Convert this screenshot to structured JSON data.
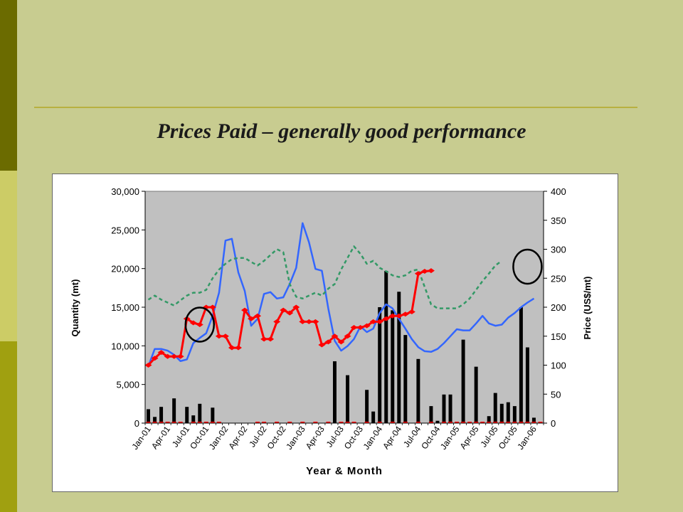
{
  "slide": {
    "title": "Prices Paid – generally good performance"
  },
  "chart_data": {
    "type": "bar+line",
    "xlabel": "Year & Month",
    "ylabel_left": "Quantity (mt)",
    "ylabel_right": "Price (US$/mt)",
    "ylim_left": [
      0,
      30000
    ],
    "ylim_right": [
      0,
      400
    ],
    "yticks_left": [
      "0",
      "5,000",
      "10,000",
      "15,000",
      "20,000",
      "25,000",
      "30,000"
    ],
    "yticks_right": [
      "0",
      "50",
      "100",
      "150",
      "200",
      "250",
      "300",
      "350",
      "400"
    ],
    "grid": false,
    "plot_background": "#c0c0c0",
    "tick_labels": [
      "Jan-01",
      "Apr-01",
      "Jul-01",
      "Oct-01",
      "Jan-02",
      "Apr-02",
      "Jul-02",
      "Oct-02",
      "Jan-03",
      "Apr-03",
      "Jul-03",
      "Oct-03",
      "Jan-04",
      "Apr-04",
      "Jul-04",
      "Oct-04",
      "Jan-05",
      "Apr-05",
      "Jul-05",
      "Oct-05",
      "Jan-06"
    ],
    "months_count": 62,
    "quantity_bars": [
      [
        0,
        1800
      ],
      [
        1,
        800
      ],
      [
        2,
        2100
      ],
      [
        4,
        3200
      ],
      [
        6,
        2100
      ],
      [
        7,
        1000
      ],
      [
        8,
        2500
      ],
      [
        10,
        2000
      ],
      [
        29,
        8000
      ],
      [
        31,
        6200
      ],
      [
        34,
        4300
      ],
      [
        35,
        1500
      ],
      [
        36,
        15000
      ],
      [
        37,
        19700
      ],
      [
        38,
        14600
      ],
      [
        39,
        17000
      ],
      [
        40,
        11400
      ],
      [
        42,
        8300
      ],
      [
        44,
        2200
      ],
      [
        45,
        300
      ],
      [
        46,
        3700
      ],
      [
        47,
        3700
      ],
      [
        49,
        10800
      ],
      [
        51,
        7300
      ],
      [
        53,
        900
      ],
      [
        54,
        3900
      ],
      [
        55,
        2500
      ],
      [
        56,
        2700
      ],
      [
        57,
        2200
      ],
      [
        58,
        15000
      ],
      [
        59,
        9800
      ],
      [
        60,
        700
      ]
    ],
    "series": [
      {
        "type": "line",
        "color": "#3366ff",
        "points": [
          [
            0,
            98
          ],
          [
            1,
            128
          ],
          [
            2,
            128
          ],
          [
            3,
            125
          ],
          [
            4,
            118
          ],
          [
            5,
            107
          ],
          [
            6,
            110
          ],
          [
            7,
            138
          ],
          [
            8,
            147
          ],
          [
            9,
            155
          ],
          [
            10,
            185
          ],
          [
            11,
            225
          ],
          [
            12,
            315
          ],
          [
            13,
            318
          ],
          [
            14,
            260
          ],
          [
            15,
            228
          ],
          [
            16,
            168
          ],
          [
            17,
            180
          ],
          [
            18,
            223
          ],
          [
            19,
            226
          ],
          [
            20,
            215
          ],
          [
            21,
            217
          ],
          [
            22,
            240
          ],
          [
            23,
            268
          ],
          [
            24,
            345
          ],
          [
            25,
            312
          ],
          [
            26,
            266
          ],
          [
            27,
            263
          ],
          [
            28,
            198
          ],
          [
            29,
            142
          ],
          [
            30,
            125
          ],
          [
            31,
            133
          ],
          [
            32,
            145
          ],
          [
            33,
            167
          ],
          [
            34,
            157
          ],
          [
            35,
            163
          ],
          [
            36,
            190
          ],
          [
            37,
            205
          ],
          [
            38,
            198
          ],
          [
            39,
            180
          ],
          [
            40,
            163
          ],
          [
            41,
            145
          ],
          [
            42,
            131
          ],
          [
            43,
            124
          ],
          [
            44,
            123
          ],
          [
            45,
            128
          ],
          [
            46,
            138
          ],
          [
            47,
            150
          ],
          [
            48,
            162
          ],
          [
            49,
            160
          ],
          [
            50,
            160
          ],
          [
            51,
            172
          ],
          [
            52,
            185
          ],
          [
            53,
            172
          ],
          [
            54,
            168
          ],
          [
            55,
            170
          ],
          [
            56,
            182
          ],
          [
            57,
            190
          ],
          [
            58,
            200
          ],
          [
            59,
            208
          ],
          [
            60,
            215
          ]
        ]
      },
      {
        "type": "line",
        "dashed": true,
        "color": "#339966",
        "points": [
          [
            0,
            213
          ],
          [
            1,
            220
          ],
          [
            2,
            213
          ],
          [
            3,
            208
          ],
          [
            4,
            203
          ],
          [
            5,
            212
          ],
          [
            6,
            220
          ],
          [
            7,
            225
          ],
          [
            8,
            225
          ],
          [
            9,
            230
          ],
          [
            10,
            250
          ],
          [
            11,
            265
          ],
          [
            12,
            275
          ],
          [
            13,
            283
          ],
          [
            14,
            285
          ],
          [
            15,
            285
          ],
          [
            16,
            278
          ],
          [
            17,
            272
          ],
          [
            18,
            280
          ],
          [
            19,
            290
          ],
          [
            20,
            300
          ],
          [
            21,
            295
          ],
          [
            22,
            240
          ],
          [
            23,
            218
          ],
          [
            24,
            215
          ],
          [
            25,
            220
          ],
          [
            26,
            225
          ],
          [
            27,
            220
          ],
          [
            28,
            232
          ],
          [
            29,
            240
          ],
          [
            30,
            265
          ],
          [
            31,
            285
          ],
          [
            32,
            305
          ],
          [
            33,
            292
          ],
          [
            34,
            275
          ],
          [
            35,
            280
          ],
          [
            36,
            268
          ],
          [
            37,
            262
          ],
          [
            38,
            255
          ],
          [
            39,
            252
          ],
          [
            40,
            255
          ],
          [
            41,
            263
          ],
          [
            42,
            265
          ],
          [
            43,
            235
          ],
          [
            44,
            205
          ],
          [
            45,
            198
          ],
          [
            46,
            198
          ],
          [
            47,
            198
          ],
          [
            48,
            198
          ],
          [
            49,
            205
          ],
          [
            50,
            215
          ],
          [
            51,
            230
          ],
          [
            52,
            245
          ],
          [
            53,
            258
          ],
          [
            54,
            272
          ],
          [
            55,
            280
          ]
        ]
      },
      {
        "type": "line",
        "markers": "diamond",
        "color": "#ff0000",
        "points": [
          [
            0,
            100
          ],
          [
            1,
            112
          ],
          [
            2,
            122
          ],
          [
            3,
            115
          ],
          [
            4,
            115
          ],
          [
            5,
            115
          ],
          [
            6,
            180
          ],
          [
            7,
            173
          ],
          [
            8,
            170
          ],
          [
            9,
            200
          ],
          [
            10,
            200
          ],
          [
            11,
            150
          ],
          [
            12,
            150
          ],
          [
            13,
            130
          ],
          [
            14,
            130
          ],
          [
            15,
            195
          ],
          [
            16,
            180
          ],
          [
            17,
            185
          ],
          [
            18,
            145
          ],
          [
            19,
            145
          ],
          [
            20,
            175
          ],
          [
            21,
            195
          ],
          [
            22,
            190
          ],
          [
            23,
            200
          ],
          [
            24,
            175
          ],
          [
            25,
            175
          ],
          [
            26,
            175
          ],
          [
            27,
            135
          ],
          [
            28,
            140
          ],
          [
            29,
            150
          ],
          [
            30,
            140
          ],
          [
            31,
            150
          ],
          [
            32,
            165
          ],
          [
            33,
            165
          ],
          [
            34,
            168
          ],
          [
            35,
            175
          ],
          [
            36,
            175
          ],
          [
            37,
            180
          ],
          [
            38,
            185
          ],
          [
            39,
            185
          ],
          [
            40,
            188
          ],
          [
            41,
            192
          ],
          [
            42,
            258
          ],
          [
            43,
            262
          ],
          [
            44,
            263
          ]
        ]
      }
    ],
    "red_series_x": [
      0,
      1,
      2,
      3,
      4,
      5,
      7,
      8,
      9,
      10,
      11,
      17,
      18,
      20,
      22,
      24,
      26,
      28,
      30,
      31,
      32,
      34,
      36,
      38,
      40,
      42,
      44,
      46,
      47,
      48,
      49,
      50,
      51,
      52,
      53,
      54,
      55,
      56,
      57,
      58,
      59,
      60,
      61,
      62,
      63
    ],
    "highlight_circles": [
      [
        8,
        170
      ],
      [
        59,
        270
      ]
    ]
  }
}
